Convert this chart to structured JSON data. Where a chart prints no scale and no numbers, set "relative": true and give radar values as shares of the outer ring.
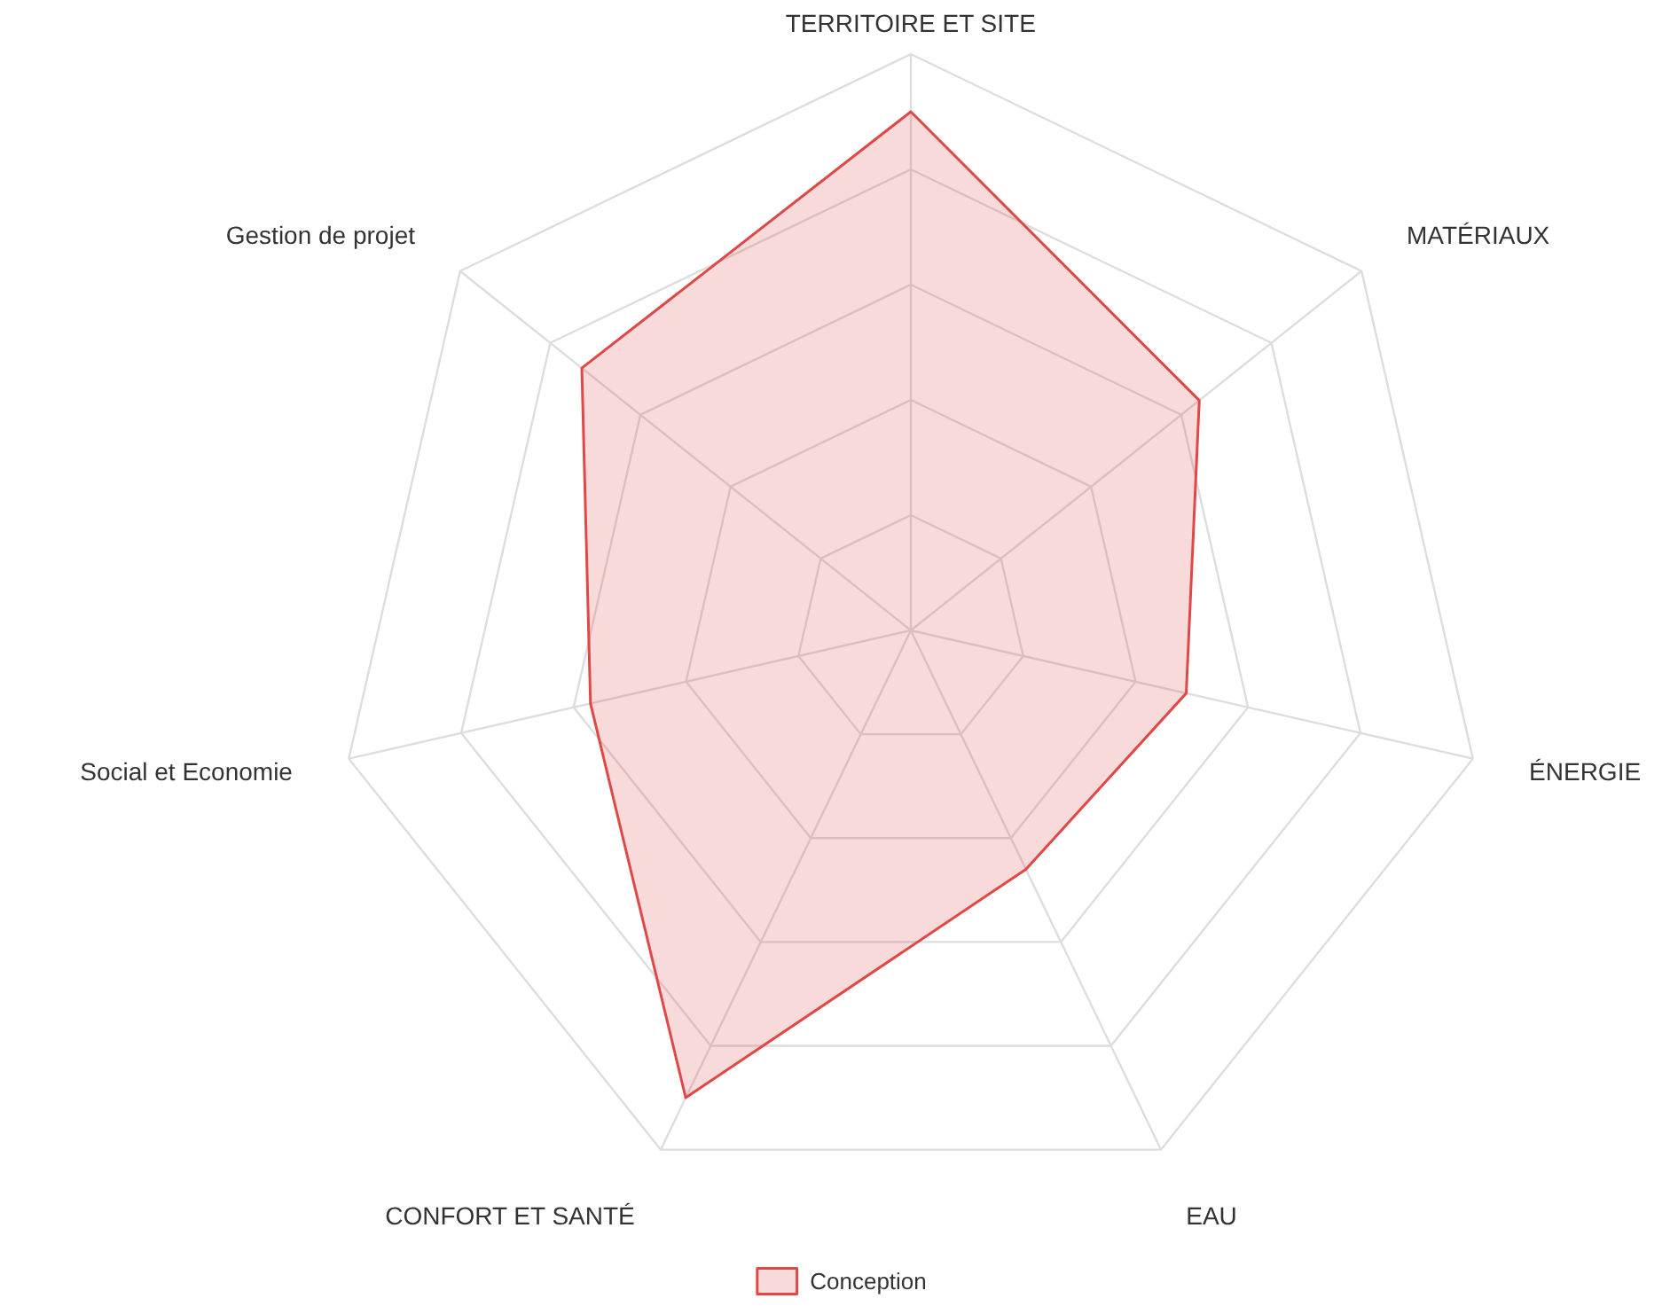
{
  "chart_data": {
    "type": "radar",
    "relative": true,
    "categories": [
      "TERRITOIRE ET SITE",
      "MATÉRIAUX",
      "ÉNERGIE",
      "EAU",
      "CONFORT ET SANTÉ",
      "Social et Economie",
      "Gestion de projet"
    ],
    "series": [
      {
        "name": "Conception",
        "color": "#e04848",
        "values": [
          0.9,
          0.64,
          0.49,
          0.46,
          0.9,
          0.57,
          0.73
        ]
      }
    ],
    "grid": true,
    "legend": "bottom",
    "marker": "none",
    "line_style": "solid"
  }
}
